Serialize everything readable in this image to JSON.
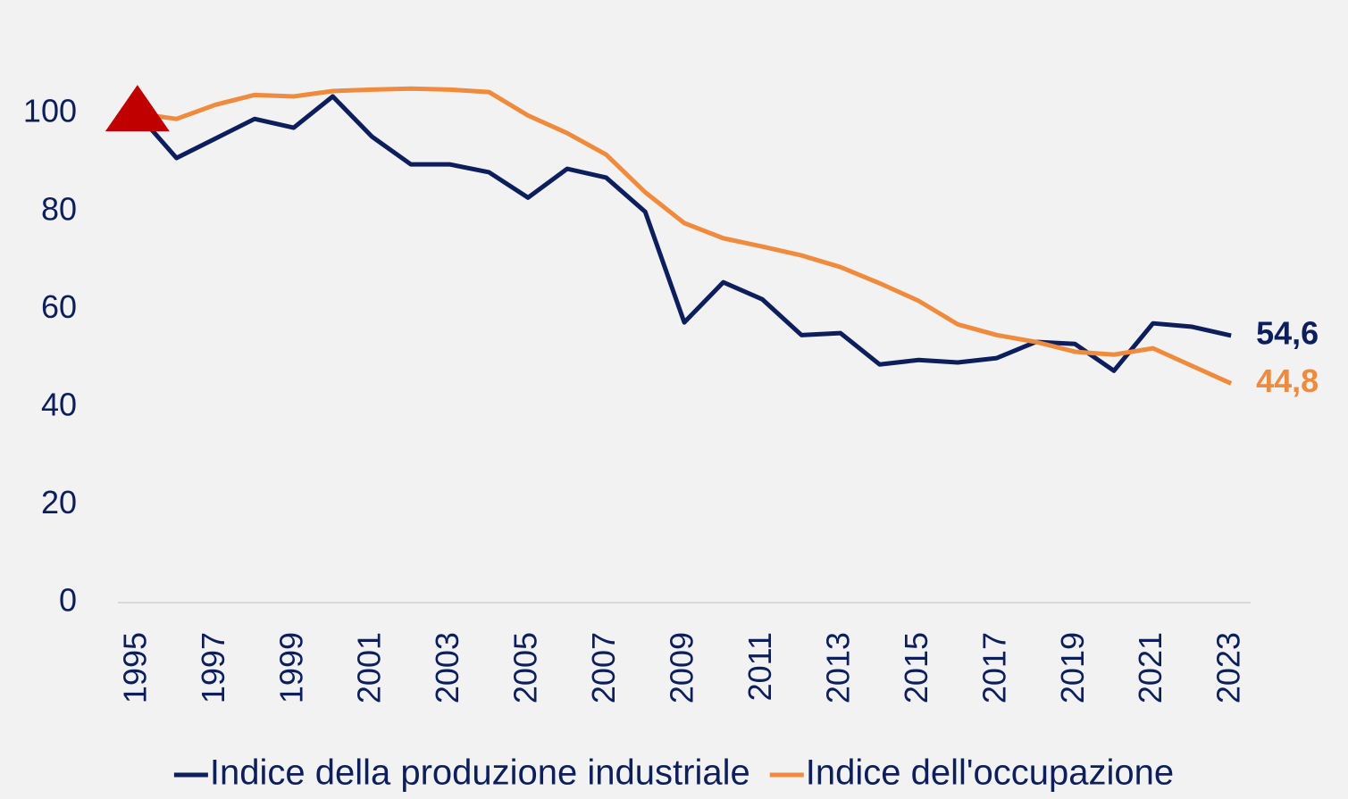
{
  "chart_data": {
    "type": "line",
    "x": [
      1995,
      1996,
      1997,
      1998,
      1999,
      2000,
      2001,
      2002,
      2003,
      2004,
      2005,
      2006,
      2007,
      2008,
      2009,
      2010,
      2011,
      2012,
      2013,
      2014,
      2015,
      2016,
      2017,
      2018,
      2019,
      2020,
      2021,
      2022,
      2023
    ],
    "series": [
      {
        "name": "Indice della produzione industriale",
        "color": "#0c1f5c",
        "values": [
          100,
          90.9,
          94.9,
          98.9,
          97.1,
          103.5,
          95.3,
          89.6,
          89.6,
          88.0,
          82.8,
          88.7,
          86.9,
          79.9,
          57.3,
          65.5,
          62.0,
          54.7,
          55.1,
          48.7,
          49.6,
          49.1,
          50.0,
          53.3,
          52.9,
          47.4,
          57.1,
          56.4,
          54.6
        ],
        "value_labels": [
          null,
          null,
          null,
          null,
          null,
          null,
          null,
          null,
          null,
          null,
          null,
          null,
          null,
          null,
          null,
          null,
          null,
          null,
          null,
          null,
          null,
          null,
          null,
          null,
          null,
          null,
          null,
          null,
          "54,6"
        ]
      },
      {
        "name": "Indice dell'occupazione",
        "color": "#f08a3c",
        "values": [
          100,
          98.9,
          101.8,
          103.8,
          103.5,
          104.6,
          104.9,
          105.1,
          104.9,
          104.4,
          99.6,
          96.0,
          91.6,
          83.9,
          77.6,
          74.5,
          72.8,
          71.0,
          68.6,
          65.3,
          61.7,
          56.9,
          54.7,
          53.3,
          51.3,
          50.7,
          52.0,
          48.4,
          44.8
        ],
        "value_labels": [
          null,
          null,
          null,
          null,
          null,
          null,
          null,
          null,
          null,
          null,
          null,
          null,
          null,
          null,
          null,
          null,
          null,
          null,
          null,
          null,
          null,
          null,
          null,
          null,
          null,
          null,
          null,
          null,
          "44,8"
        ]
      }
    ],
    "marker": {
      "x": 1995,
      "y": 100,
      "color": "#c00000"
    },
    "xlim": [
      1994.5,
      2023.5
    ],
    "xticks": [
      1995,
      1997,
      1999,
      2001,
      2003,
      2005,
      2007,
      2009,
      2011,
      2013,
      2015,
      2017,
      2019,
      2021,
      2023
    ],
    "ylim": [
      0,
      115
    ],
    "yticks": [
      0,
      20,
      40,
      60,
      80,
      100
    ],
    "grid": false,
    "legend": "bottom"
  }
}
